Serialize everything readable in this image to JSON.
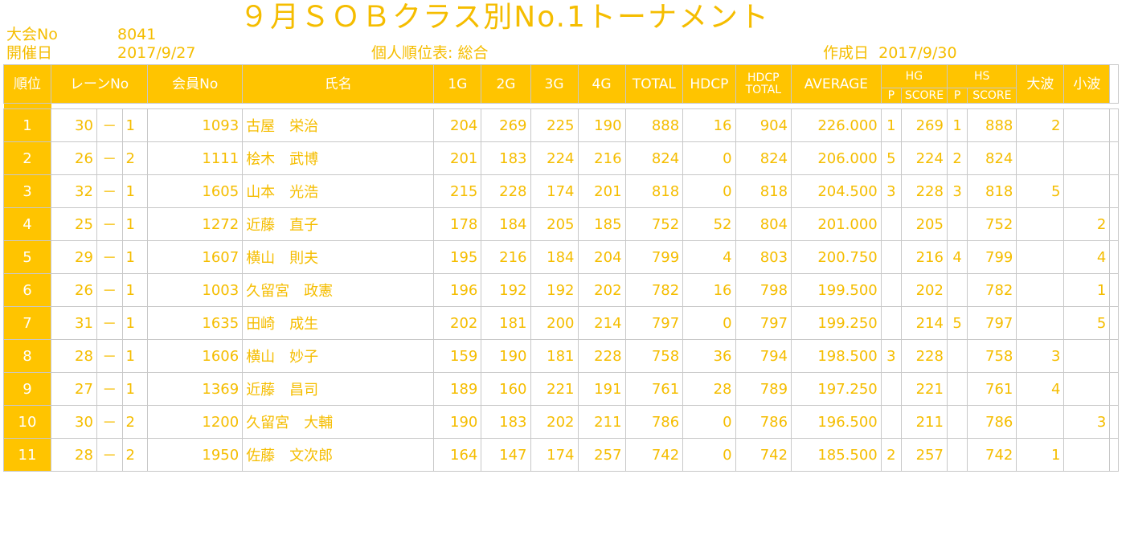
{
  "header": {
    "title": "９月ＳＯＢクラス別No.1トーナメント",
    "taikai_label": "大会No",
    "taikai_no": "8041",
    "kaisai_label": "開催日",
    "kaisai_date": "2017/9/27",
    "report_name": "個人順位表: 総合",
    "created_label": "作成日",
    "created_date": "2017/9/30"
  },
  "columns": {
    "rank": "順位",
    "lane": "レーンNo",
    "member": "会員No",
    "name": "氏名",
    "g1": "1G",
    "g2": "2G",
    "g3": "3G",
    "g4": "4G",
    "total": "TOTAL",
    "hdcp": "HDCP",
    "hdcp_total_1": "HDCP",
    "hdcp_total_2": "TOTAL",
    "average": "AVERAGE",
    "hg": "HG",
    "hs": "HS",
    "hg_p": "P",
    "hg_score": "SCORE",
    "hs_p": "P",
    "hs_score": "SCORE",
    "onami": "大波",
    "konami": "小波"
  },
  "rows": [
    {
      "rank": "1",
      "lane": "30",
      "dash": "－",
      "sub": "1",
      "member": "1093",
      "name": "古屋　栄治",
      "g1": "204",
      "g2": "269",
      "g3": "225",
      "g4": "190",
      "total": "888",
      "hdcp": "16",
      "hdcp_total": "904",
      "average": "226.000",
      "hg_p": "1",
      "hg_score": "269",
      "hs_p": "1",
      "hs_score": "888",
      "onami": "2",
      "konami": ""
    },
    {
      "rank": "2",
      "lane": "26",
      "dash": "－",
      "sub": "2",
      "member": "1111",
      "name": "桧木　武博",
      "g1": "201",
      "g2": "183",
      "g3": "224",
      "g4": "216",
      "total": "824",
      "hdcp": "0",
      "hdcp_total": "824",
      "average": "206.000",
      "hg_p": "5",
      "hg_score": "224",
      "hs_p": "2",
      "hs_score": "824",
      "onami": "",
      "konami": ""
    },
    {
      "rank": "3",
      "lane": "32",
      "dash": "－",
      "sub": "1",
      "member": "1605",
      "name": "山本　光浩",
      "g1": "215",
      "g2": "228",
      "g3": "174",
      "g4": "201",
      "total": "818",
      "hdcp": "0",
      "hdcp_total": "818",
      "average": "204.500",
      "hg_p": "3",
      "hg_score": "228",
      "hs_p": "3",
      "hs_score": "818",
      "onami": "5",
      "konami": ""
    },
    {
      "rank": "4",
      "lane": "25",
      "dash": "－",
      "sub": "1",
      "member": "1272",
      "name": "近藤　直子",
      "g1": "178",
      "g2": "184",
      "g3": "205",
      "g4": "185",
      "total": "752",
      "hdcp": "52",
      "hdcp_total": "804",
      "average": "201.000",
      "hg_p": "",
      "hg_score": "205",
      "hs_p": "",
      "hs_score": "752",
      "onami": "",
      "konami": "2"
    },
    {
      "rank": "5",
      "lane": "29",
      "dash": "－",
      "sub": "1",
      "member": "1607",
      "name": "横山　則夫",
      "g1": "195",
      "g2": "216",
      "g3": "184",
      "g4": "204",
      "total": "799",
      "hdcp": "4",
      "hdcp_total": "803",
      "average": "200.750",
      "hg_p": "",
      "hg_score": "216",
      "hs_p": "4",
      "hs_score": "799",
      "onami": "",
      "konami": "4"
    },
    {
      "rank": "6",
      "lane": "26",
      "dash": "－",
      "sub": "1",
      "member": "1003",
      "name": "久留宮　政憲",
      "g1": "196",
      "g2": "192",
      "g3": "192",
      "g4": "202",
      "total": "782",
      "hdcp": "16",
      "hdcp_total": "798",
      "average": "199.500",
      "hg_p": "",
      "hg_score": "202",
      "hs_p": "",
      "hs_score": "782",
      "onami": "",
      "konami": "1"
    },
    {
      "rank": "7",
      "lane": "31",
      "dash": "－",
      "sub": "1",
      "member": "1635",
      "name": "田崎　成生",
      "g1": "202",
      "g2": "181",
      "g3": "200",
      "g4": "214",
      "total": "797",
      "hdcp": "0",
      "hdcp_total": "797",
      "average": "199.250",
      "hg_p": "",
      "hg_score": "214",
      "hs_p": "5",
      "hs_score": "797",
      "onami": "",
      "konami": "5"
    },
    {
      "rank": "8",
      "lane": "28",
      "dash": "－",
      "sub": "1",
      "member": "1606",
      "name": "横山　妙子",
      "g1": "159",
      "g2": "190",
      "g3": "181",
      "g4": "228",
      "total": "758",
      "hdcp": "36",
      "hdcp_total": "794",
      "average": "198.500",
      "hg_p": "3",
      "hg_score": "228",
      "hs_p": "",
      "hs_score": "758",
      "onami": "3",
      "konami": ""
    },
    {
      "rank": "9",
      "lane": "27",
      "dash": "－",
      "sub": "1",
      "member": "1369",
      "name": "近藤　昌司",
      "g1": "189",
      "g2": "160",
      "g3": "221",
      "g4": "191",
      "total": "761",
      "hdcp": "28",
      "hdcp_total": "789",
      "average": "197.250",
      "hg_p": "",
      "hg_score": "221",
      "hs_p": "",
      "hs_score": "761",
      "onami": "4",
      "konami": ""
    },
    {
      "rank": "10",
      "lane": "30",
      "dash": "－",
      "sub": "2",
      "member": "1200",
      "name": "久留宮　大輔",
      "g1": "190",
      "g2": "183",
      "g3": "202",
      "g4": "211",
      "total": "786",
      "hdcp": "0",
      "hdcp_total": "786",
      "average": "196.500",
      "hg_p": "",
      "hg_score": "211",
      "hs_p": "",
      "hs_score": "786",
      "onami": "",
      "konami": "3"
    },
    {
      "rank": "11",
      "lane": "28",
      "dash": "－",
      "sub": "2",
      "member": "1950",
      "name": "佐藤　文次郎",
      "g1": "164",
      "g2": "147",
      "g3": "174",
      "g4": "257",
      "total": "742",
      "hdcp": "0",
      "hdcp_total": "742",
      "average": "185.500",
      "hg_p": "2",
      "hg_score": "257",
      "hs_p": "",
      "hs_score": "742",
      "onami": "1",
      "konami": ""
    }
  ]
}
